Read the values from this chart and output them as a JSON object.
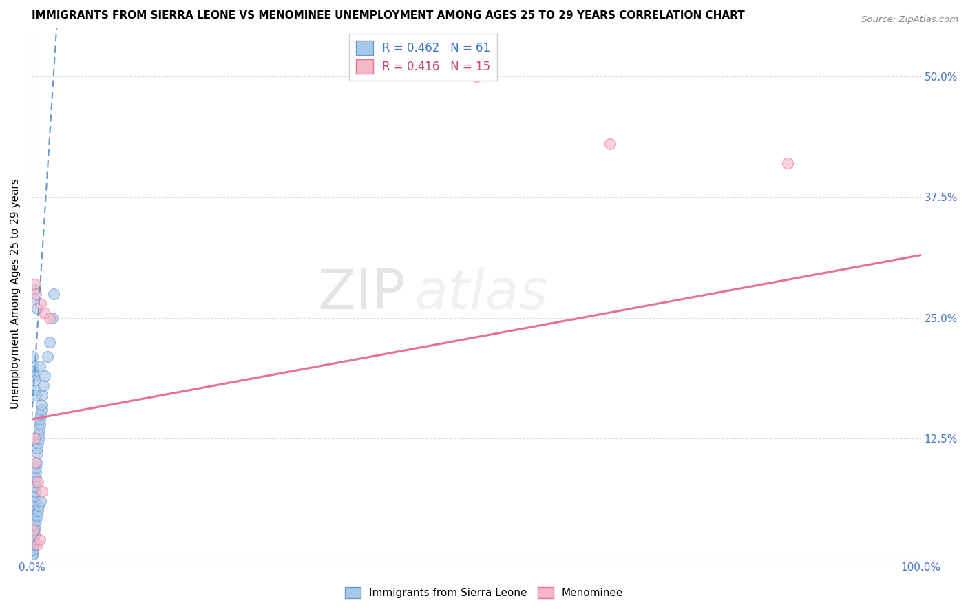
{
  "title": "IMMIGRANTS FROM SIERRA LEONE VS MENOMINEE UNEMPLOYMENT AMONG AGES 25 TO 29 YEARS CORRELATION CHART",
  "source": "Source: ZipAtlas.com",
  "ylabel": "Unemployment Among Ages 25 to 29 years",
  "xlim": [
    0,
    100
  ],
  "ylim": [
    0,
    55
  ],
  "ytick_positions": [
    0,
    12.5,
    25,
    37.5,
    50
  ],
  "ytick_labels": [
    "",
    "12.5%",
    "25.0%",
    "37.5%",
    "50.0%"
  ],
  "xtick_positions": [
    0,
    10,
    20,
    30,
    40,
    50,
    60,
    70,
    80,
    90,
    100
  ],
  "xtick_labels": [
    "0.0%",
    "",
    "",
    "",
    "",
    "",
    "",
    "",
    "",
    "",
    "100.0%"
  ],
  "blue_R": 0.462,
  "blue_N": 61,
  "pink_R": 0.416,
  "pink_N": 15,
  "blue_label": "Immigrants from Sierra Leone",
  "pink_label": "Menominee",
  "blue_color": "#A8C8E8",
  "pink_color": "#F5B8C8",
  "blue_edge_color": "#6699CC",
  "pink_edge_color": "#E87090",
  "blue_line_color": "#6699CC",
  "pink_line_color": "#E87090",
  "watermark_zip": "ZIP",
  "watermark_atlas": "atlas",
  "blue_scatter_x": [
    0.05,
    0.08,
    0.1,
    0.12,
    0.15,
    0.18,
    0.2,
    0.22,
    0.25,
    0.28,
    0.3,
    0.32,
    0.35,
    0.38,
    0.4,
    0.42,
    0.45,
    0.48,
    0.5,
    0.55,
    0.6,
    0.65,
    0.7,
    0.75,
    0.8,
    0.85,
    0.9,
    0.95,
    1.0,
    1.05,
    1.1,
    1.2,
    1.3,
    1.5,
    1.8,
    2.0,
    2.3,
    2.5,
    0.1,
    0.15,
    0.2,
    0.25,
    0.3,
    0.35,
    0.4,
    0.5,
    0.6,
    0.7,
    0.8,
    1.0,
    0.15,
    0.2,
    0.25,
    0.3,
    0.4,
    0.5,
    0.2,
    0.35,
    0.6,
    0.9,
    0.1
  ],
  "blue_scatter_y": [
    0.5,
    1.0,
    1.5,
    2.0,
    2.5,
    3.0,
    3.5,
    4.0,
    4.5,
    5.0,
    5.5,
    6.0,
    6.5,
    7.0,
    7.5,
    8.0,
    8.5,
    9.0,
    9.5,
    10.0,
    11.0,
    11.5,
    12.0,
    12.5,
    13.0,
    13.5,
    14.0,
    14.5,
    15.0,
    15.5,
    16.0,
    17.0,
    18.0,
    19.0,
    21.0,
    22.5,
    25.0,
    27.5,
    0.5,
    1.0,
    1.5,
    2.0,
    2.5,
    3.0,
    3.5,
    4.0,
    4.5,
    5.0,
    5.5,
    6.0,
    20.0,
    19.5,
    19.0,
    18.5,
    17.5,
    17.0,
    28.0,
    27.0,
    26.0,
    20.0,
    21.0
  ],
  "pink_scatter_x": [
    0.3,
    0.5,
    1.0,
    1.5,
    2.0,
    50.0,
    65.0,
    85.0,
    0.4,
    0.7,
    1.2,
    0.2,
    0.6,
    0.9,
    0.3
  ],
  "pink_scatter_y": [
    28.5,
    27.5,
    26.5,
    25.5,
    25.0,
    50.0,
    43.0,
    41.0,
    10.0,
    8.0,
    7.0,
    3.0,
    1.5,
    2.0,
    12.5
  ],
  "blue_trend_x0": 0.0,
  "blue_trend_x1": 2.8,
  "blue_trend_y0": 14.5,
  "blue_trend_y1": 55.0,
  "pink_trend_x0": 0.0,
  "pink_trend_x1": 100.0,
  "pink_trend_y0": 14.5,
  "pink_trend_y1": 31.5,
  "grid_color": "#DDDDDD",
  "title_fontsize": 11,
  "tick_fontsize": 11,
  "ylabel_fontsize": 11,
  "legend_fontsize": 12
}
